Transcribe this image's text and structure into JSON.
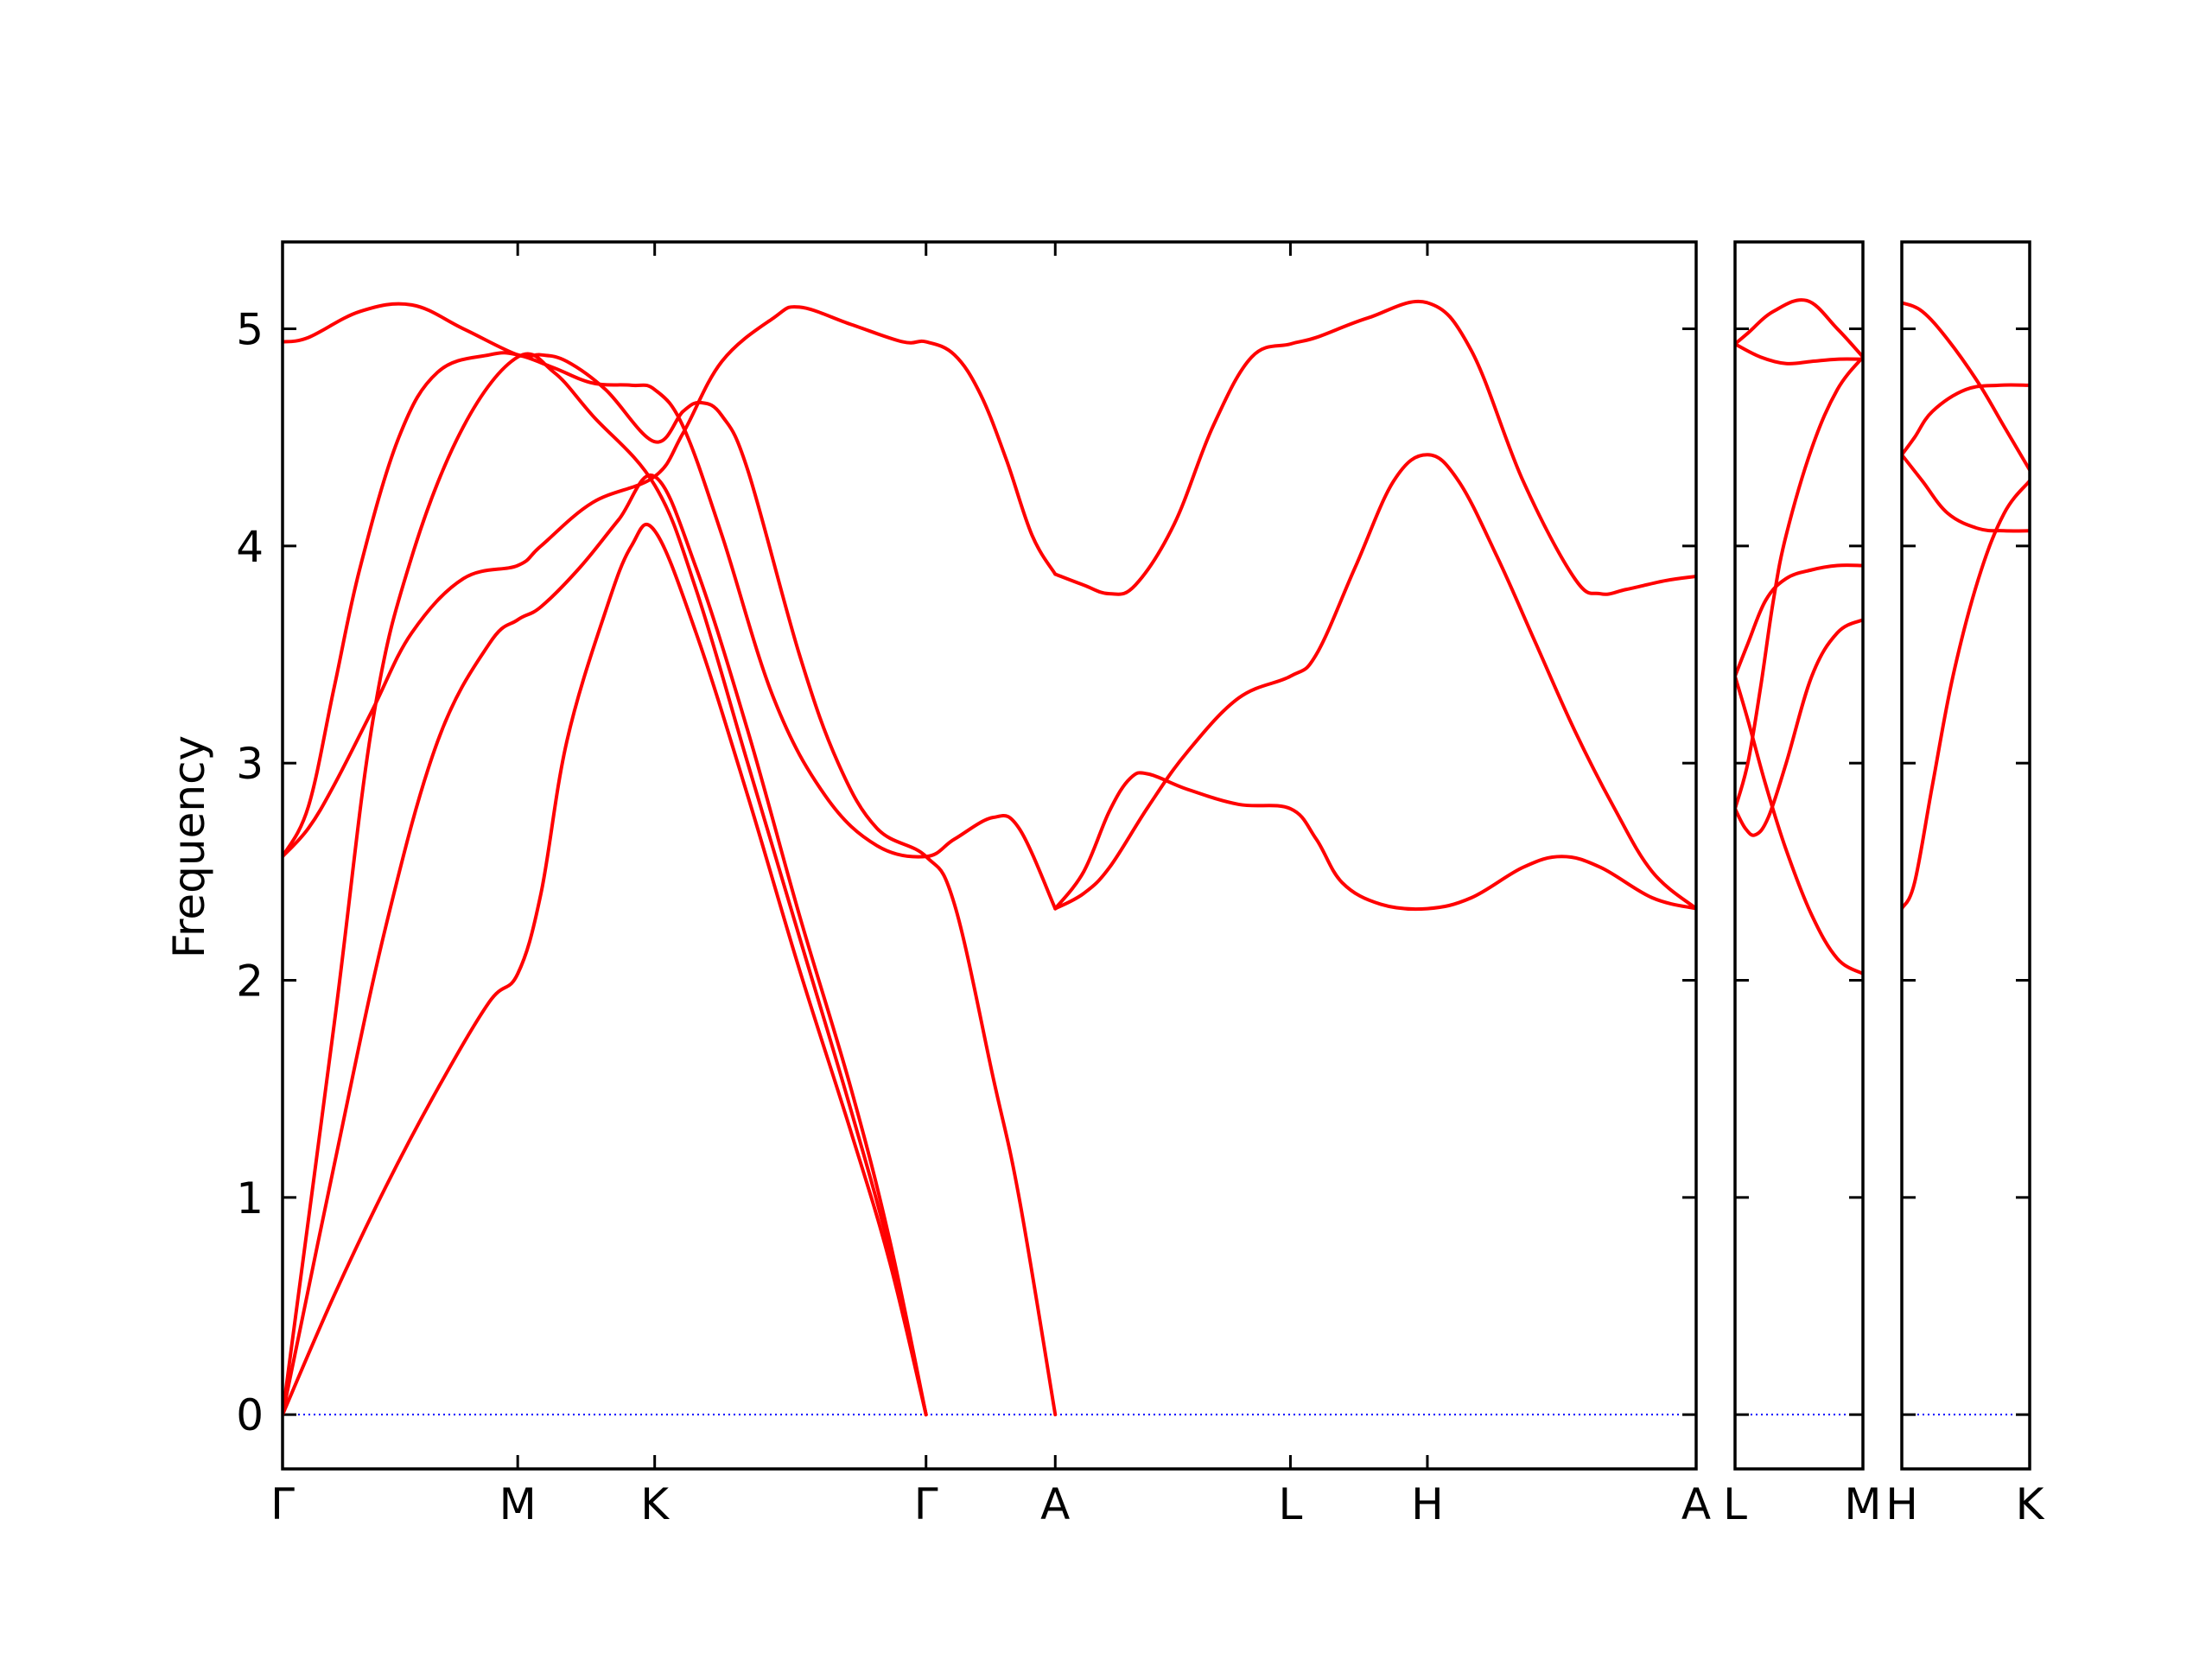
{
  "chart_data": {
    "type": "line",
    "ylabel": "Frequency",
    "ylim": [
      -0.25,
      5.4
    ],
    "yticks": [
      0,
      1,
      2,
      3,
      4,
      5
    ],
    "ytick_labels": [
      "0",
      "1",
      "2",
      "3",
      "4",
      "5"
    ],
    "grid": false,
    "legend": "none",
    "colors": {
      "bands": "#ff0000",
      "zero_line": "#0000ff",
      "axes": "#000000"
    },
    "panels": [
      {
        "name": "main",
        "xlim": [
          0,
          5.47
        ],
        "ticks": [
          {
            "x": 0,
            "label": "Γ"
          },
          {
            "x": 0.91,
            "label": "M"
          },
          {
            "x": 1.44,
            "label": "K"
          },
          {
            "x": 2.49,
            "label": "Γ"
          },
          {
            "x": 2.99,
            "label": "A"
          },
          {
            "x": 3.9,
            "label": "L"
          },
          {
            "x": 4.43,
            "label": "H"
          },
          {
            "x": 5.47,
            "label": "A"
          }
        ],
        "bands": [
          [
            [
              0,
              0
            ],
            [
              0.2,
              0.55
            ],
            [
              0.4,
              1.05
            ],
            [
              0.6,
              1.5
            ],
            [
              0.8,
              1.9
            ],
            [
              0.91,
              2.03
            ],
            [
              1.0,
              2.4
            ],
            [
              1.1,
              3.1
            ],
            [
              1.25,
              3.7
            ],
            [
              1.35,
              4.0
            ],
            [
              1.44,
              4.07
            ],
            [
              1.6,
              3.6
            ],
            [
              1.8,
              2.85
            ],
            [
              2.0,
              2.05
            ],
            [
              2.2,
              1.3
            ],
            [
              2.35,
              0.7
            ],
            [
              2.49,
              0
            ]
          ],
          [
            [
              0,
              0
            ],
            [
              0.2,
              1.15
            ],
            [
              0.4,
              2.25
            ],
            [
              0.6,
              3.1
            ],
            [
              0.8,
              3.55
            ],
            [
              0.91,
              3.66
            ],
            [
              1.0,
              3.72
            ],
            [
              1.15,
              3.9
            ],
            [
              1.3,
              4.12
            ],
            [
              1.44,
              4.32
            ],
            [
              1.6,
              3.9
            ],
            [
              1.8,
              3.15
            ],
            [
              2.0,
              2.3
            ],
            [
              2.2,
              1.5
            ],
            [
              2.35,
              0.8
            ],
            [
              2.49,
              0
            ]
          ],
          [
            [
              0,
              0
            ],
            [
              0.2,
              1.8
            ],
            [
              0.35,
              3.2
            ],
            [
              0.5,
              3.95
            ],
            [
              0.7,
              4.55
            ],
            [
              0.91,
              4.87
            ],
            [
              1.05,
              4.8
            ],
            [
              1.2,
              4.6
            ],
            [
              1.44,
              4.28
            ],
            [
              1.6,
              3.8
            ],
            [
              1.8,
              3.0
            ],
            [
              2.0,
              2.2
            ],
            [
              2.2,
              1.4
            ],
            [
              2.35,
              0.75
            ],
            [
              2.49,
              0
            ]
          ],
          [
            [
              0,
              2.57
            ],
            [
              0.1,
              2.7
            ],
            [
              0.2,
              2.9
            ],
            [
              0.35,
              3.25
            ],
            [
              0.5,
              3.6
            ],
            [
              0.7,
              3.85
            ],
            [
              0.91,
              3.91
            ],
            [
              1.0,
              4.0
            ],
            [
              1.2,
              4.2
            ],
            [
              1.44,
              4.32
            ],
            [
              1.55,
              4.52
            ],
            [
              1.7,
              4.85
            ],
            [
              1.9,
              5.05
            ],
            [
              2.0,
              5.1
            ],
            [
              2.2,
              5.02
            ],
            [
              2.4,
              4.94
            ],
            [
              2.49,
              4.94
            ],
            [
              2.6,
              4.88
            ],
            [
              2.7,
              4.7
            ],
            [
              2.8,
              4.4
            ],
            [
              2.9,
              4.05
            ],
            [
              2.99,
              3.87
            ]
          ],
          [
            [
              0,
              2.57
            ],
            [
              0.1,
              2.8
            ],
            [
              0.2,
              3.35
            ],
            [
              0.3,
              3.9
            ],
            [
              0.45,
              4.5
            ],
            [
              0.6,
              4.8
            ],
            [
              0.8,
              4.88
            ],
            [
              0.91,
              4.88
            ],
            [
              1.05,
              4.82
            ],
            [
              1.2,
              4.75
            ],
            [
              1.35,
              4.74
            ],
            [
              1.44,
              4.72
            ],
            [
              1.55,
              4.55
            ],
            [
              1.7,
              4.05
            ],
            [
              1.9,
              3.3
            ],
            [
              2.1,
              2.85
            ],
            [
              2.3,
              2.62
            ],
            [
              2.49,
              2.57
            ],
            [
              2.6,
              2.65
            ],
            [
              2.75,
              2.75
            ],
            [
              2.85,
              2.7
            ],
            [
              2.99,
              2.33
            ]
          ],
          [
            [
              0,
              4.94
            ],
            [
              0.1,
              4.96
            ],
            [
              0.3,
              5.08
            ],
            [
              0.5,
              5.11
            ],
            [
              0.7,
              5.0
            ],
            [
              0.91,
              4.88
            ],
            [
              1.0,
              4.88
            ],
            [
              1.1,
              4.85
            ],
            [
              1.25,
              4.72
            ],
            [
              1.44,
              4.48
            ],
            [
              1.55,
              4.62
            ],
            [
              1.62,
              4.66
            ],
            [
              1.7,
              4.6
            ],
            [
              1.8,
              4.35
            ],
            [
              2.0,
              3.5
            ],
            [
              2.15,
              3.0
            ],
            [
              2.3,
              2.7
            ],
            [
              2.49,
              2.57
            ],
            [
              2.6,
              2.35
            ],
            [
              2.75,
              1.55
            ],
            [
              2.85,
              1.0
            ],
            [
              2.99,
              0
            ]
          ],
          [
            [
              2.99,
              3.87
            ],
            [
              3.1,
              3.82
            ],
            [
              3.2,
              3.78
            ],
            [
              3.3,
              3.82
            ],
            [
              3.45,
              4.1
            ],
            [
              3.6,
              4.55
            ],
            [
              3.75,
              4.87
            ],
            [
              3.9,
              4.93
            ],
            [
              4.0,
              4.96
            ],
            [
              4.2,
              5.05
            ],
            [
              4.43,
              5.12
            ],
            [
              4.6,
              4.9
            ],
            [
              4.8,
              4.3
            ],
            [
              5.0,
              3.85
            ],
            [
              5.1,
              3.78
            ],
            [
              5.2,
              3.8
            ],
            [
              5.35,
              3.84
            ],
            [
              5.47,
              3.86
            ]
          ],
          [
            [
              2.99,
              2.33
            ],
            [
              3.1,
              2.5
            ],
            [
              3.2,
              2.78
            ],
            [
              3.28,
              2.93
            ],
            [
              3.35,
              2.95
            ],
            [
              3.5,
              2.88
            ],
            [
              3.7,
              2.81
            ],
            [
              3.9,
              2.79
            ],
            [
              4.0,
              2.65
            ],
            [
              4.1,
              2.45
            ],
            [
              4.25,
              2.35
            ],
            [
              4.43,
              2.33
            ],
            [
              4.6,
              2.38
            ],
            [
              4.8,
              2.52
            ],
            [
              4.95,
              2.57
            ],
            [
              5.1,
              2.52
            ],
            [
              5.3,
              2.38
            ],
            [
              5.47,
              2.33
            ]
          ],
          [
            [
              2.99,
              2.33
            ],
            [
              3.1,
              2.4
            ],
            [
              3.2,
              2.52
            ],
            [
              3.35,
              2.8
            ],
            [
              3.5,
              3.05
            ],
            [
              3.7,
              3.3
            ],
            [
              3.9,
              3.4
            ],
            [
              4.0,
              3.5
            ],
            [
              4.15,
              3.9
            ],
            [
              4.3,
              4.3
            ],
            [
              4.43,
              4.42
            ],
            [
              4.55,
              4.3
            ],
            [
              4.7,
              3.95
            ],
            [
              4.85,
              3.55
            ],
            [
              5.0,
              3.15
            ],
            [
              5.15,
              2.8
            ],
            [
              5.3,
              2.5
            ],
            [
              5.47,
              2.33
            ]
          ]
        ]
      },
      {
        "name": "L-M",
        "xlim": [
          0,
          0.5
        ],
        "ticks": [
          {
            "x": 0,
            "label": "L"
          },
          {
            "x": 0.5,
            "label": "M"
          }
        ],
        "bands": [
          [
            [
              0,
              4.93
            ],
            [
              0.05,
              4.98
            ],
            [
              0.15,
              5.08
            ],
            [
              0.28,
              5.13
            ],
            [
              0.4,
              5.0
            ],
            [
              0.5,
              4.87
            ]
          ],
          [
            [
              0,
              4.93
            ],
            [
              0.1,
              4.87
            ],
            [
              0.2,
              4.84
            ],
            [
              0.3,
              4.85
            ],
            [
              0.4,
              4.86
            ],
            [
              0.5,
              4.86
            ]
          ],
          [
            [
              0,
              2.79
            ],
            [
              0.05,
              3.0
            ],
            [
              0.1,
              3.35
            ],
            [
              0.15,
              3.75
            ],
            [
              0.2,
              4.05
            ],
            [
              0.3,
              4.45
            ],
            [
              0.4,
              4.72
            ],
            [
              0.5,
              4.87
            ]
          ],
          [
            [
              0,
              2.79
            ],
            [
              0.04,
              2.7
            ],
            [
              0.08,
              2.67
            ],
            [
              0.13,
              2.75
            ],
            [
              0.2,
              3.0
            ],
            [
              0.3,
              3.4
            ],
            [
              0.4,
              3.6
            ],
            [
              0.5,
              3.66
            ]
          ],
          [
            [
              0,
              3.4
            ],
            [
              0.05,
              3.55
            ],
            [
              0.12,
              3.75
            ],
            [
              0.2,
              3.85
            ],
            [
              0.3,
              3.89
            ],
            [
              0.4,
              3.91
            ],
            [
              0.5,
              3.91
            ]
          ],
          [
            [
              0,
              3.4
            ],
            [
              0.05,
              3.2
            ],
            [
              0.12,
              2.9
            ],
            [
              0.2,
              2.6
            ],
            [
              0.3,
              2.3
            ],
            [
              0.4,
              2.1
            ],
            [
              0.5,
              2.03
            ]
          ]
        ]
      },
      {
        "name": "H-K",
        "xlim": [
          0,
          0.5
        ],
        "ticks": [
          {
            "x": 0,
            "label": "H"
          },
          {
            "x": 0.5,
            "label": "K"
          }
        ],
        "bands": [
          [
            [
              0,
              5.12
            ],
            [
              0.08,
              5.08
            ],
            [
              0.18,
              4.95
            ],
            [
              0.3,
              4.75
            ],
            [
              0.4,
              4.55
            ],
            [
              0.5,
              4.35
            ]
          ],
          [
            [
              0,
              4.42
            ],
            [
              0.05,
              4.5
            ],
            [
              0.12,
              4.62
            ],
            [
              0.25,
              4.72
            ],
            [
              0.38,
              4.74
            ],
            [
              0.5,
              4.74
            ]
          ],
          [
            [
              0,
              4.42
            ],
            [
              0.08,
              4.3
            ],
            [
              0.18,
              4.15
            ],
            [
              0.3,
              4.08
            ],
            [
              0.4,
              4.07
            ],
            [
              0.5,
              4.07
            ]
          ],
          [
            [
              0,
              2.33
            ],
            [
              0.05,
              2.45
            ],
            [
              0.12,
              2.9
            ],
            [
              0.2,
              3.4
            ],
            [
              0.3,
              3.85
            ],
            [
              0.4,
              4.15
            ],
            [
              0.5,
              4.3
            ]
          ]
        ]
      }
    ]
  }
}
